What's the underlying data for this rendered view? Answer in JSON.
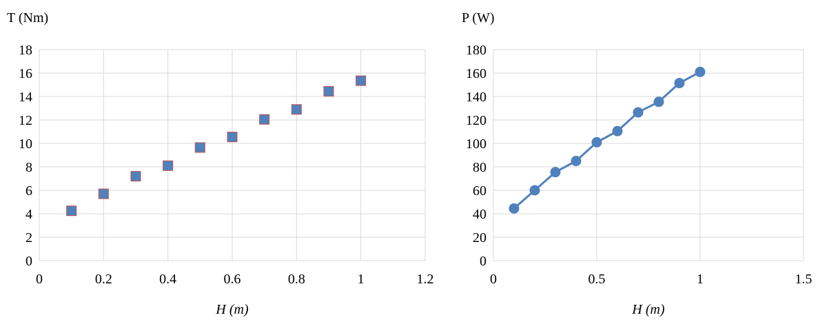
{
  "chart_data": [
    {
      "type": "scatter",
      "title": "T (Nm)",
      "xlabel": "H (m)",
      "ylabel": "T (Nm)",
      "xlim": [
        0,
        1.2
      ],
      "ylim": [
        0,
        18
      ],
      "xticks": [
        "0",
        "0.2",
        "0.4",
        "0.6",
        "0.8",
        "1",
        "1.2"
      ],
      "yticks": [
        "0",
        "2",
        "4",
        "6",
        "8",
        "10",
        "12",
        "14",
        "16",
        "18"
      ],
      "grid": true,
      "marker": "square",
      "series": [
        {
          "x": [
            0.1,
            0.2,
            0.3,
            0.4,
            0.5,
            0.6,
            0.7,
            0.8,
            0.9,
            1.0
          ],
          "y": [
            4.25,
            5.7,
            7.2,
            8.1,
            9.65,
            10.55,
            12.05,
            12.9,
            14.45,
            15.35
          ],
          "color": "#4f81bd",
          "edge_color": "#c0504d"
        }
      ]
    },
    {
      "type": "line",
      "title": "P (W)",
      "xlabel": "H (m)",
      "ylabel": "P (W)",
      "xlim": [
        0,
        1.5
      ],
      "ylim": [
        0,
        180
      ],
      "xticks": [
        "0",
        "0.5",
        "1",
        "1.5"
      ],
      "yticks": [
        "0",
        "20",
        "40",
        "60",
        "80",
        "100",
        "120",
        "140",
        "160",
        "180"
      ],
      "grid": true,
      "marker": "circle",
      "series": [
        {
          "x": [
            0.1,
            0.2,
            0.3,
            0.4,
            0.5,
            0.6,
            0.7,
            0.8,
            0.9,
            1.0
          ],
          "y": [
            44.5,
            60,
            75.5,
            85,
            101,
            110.5,
            126.5,
            135.5,
            151.5,
            161
          ],
          "color": "#4f81bd"
        }
      ]
    }
  ]
}
